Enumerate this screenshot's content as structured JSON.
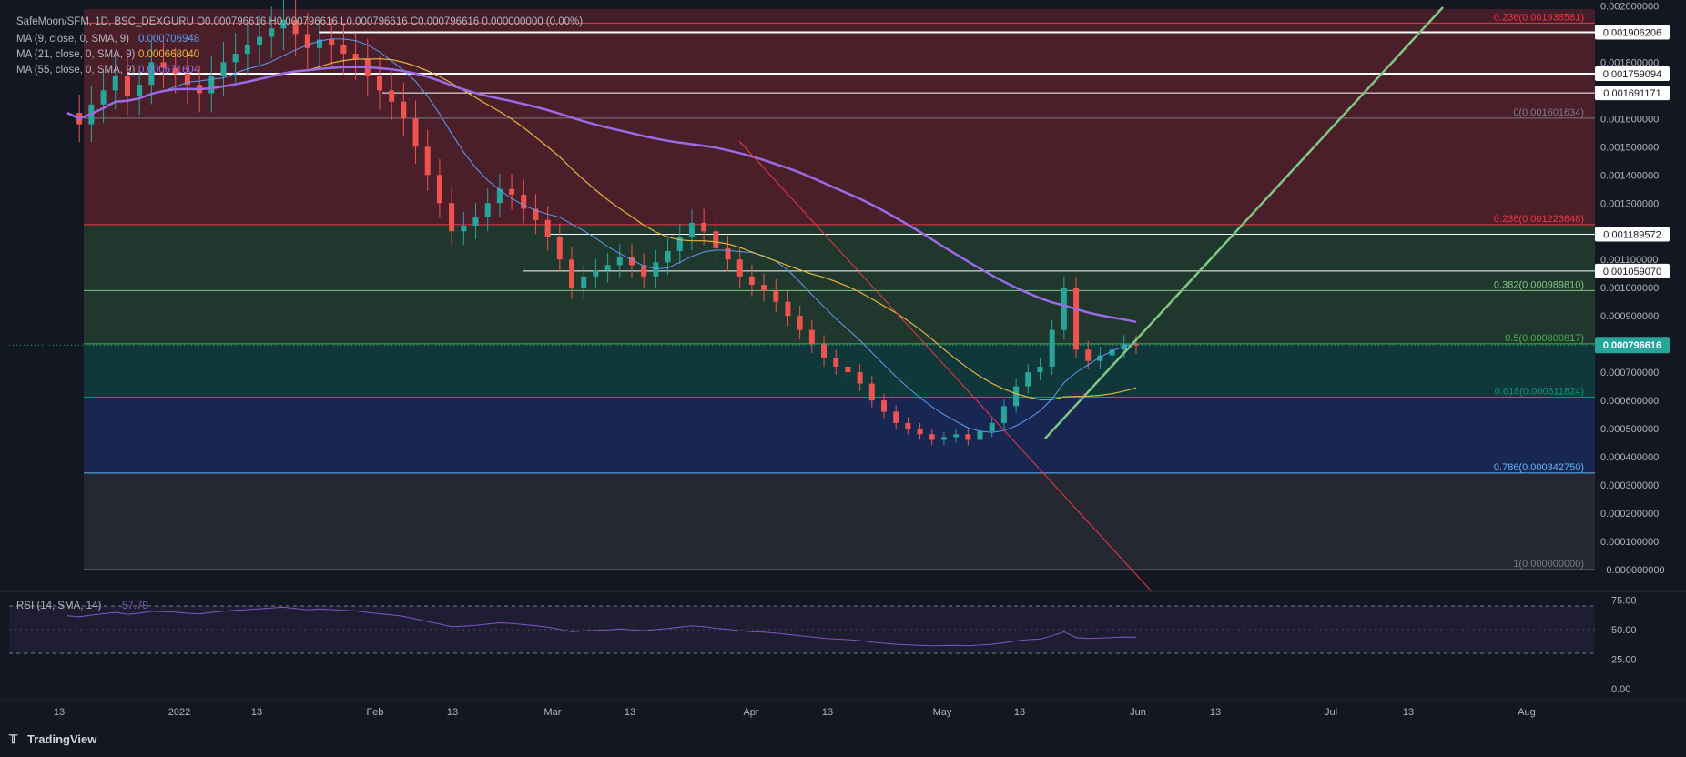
{
  "header": {
    "symbol_line": "SafeMoon/SFM, 1D, BSC_DEXGURU O0.000796616 H0.000796616 L0.000796616 C0.000796616 0.000000000 (0.00%)",
    "indicators": [
      {
        "text": "MA (9, close, 0, SMA, 9)",
        "value": "0.000706948",
        "color": "#5b9cf6"
      },
      {
        "text": "MA (21, close, 0, SMA, 9)",
        "value": "0.000668040",
        "color": "#e8b53c"
      },
      {
        "text": "MA (55, close, 0, SMA, 9)",
        "value": "0.000671604",
        "color": "#9c6ae5"
      }
    ]
  },
  "price_axis": {
    "ticks": [
      "0.002000000",
      "0.001800000",
      "0.001600000",
      "0.001500000",
      "0.001400000",
      "0.001300000",
      "0.001100000",
      "0.001000000",
      "0.000900000",
      "0.000700000",
      "0.000600000",
      "0.000500000",
      "0.000400000",
      "0.000300000",
      "0.000200000",
      "0.000100000",
      "−0.000000000"
    ],
    "tick_values": [
      0.002,
      0.0018,
      0.0016,
      0.0015,
      0.0014,
      0.0013,
      0.0011,
      0.001,
      0.0009,
      0.0007,
      0.0006,
      0.0005,
      0.0004,
      0.0003,
      0.0002,
      0.0001,
      0.0
    ],
    "boxed_labels": [
      {
        "text": "0.001906206",
        "value": 0.001906206
      },
      {
        "text": "0.001759094",
        "value": 0.001759094
      },
      {
        "text": "0.001691171",
        "value": 0.001691171
      },
      {
        "text": "0.001189572",
        "value": 0.001189572
      },
      {
        "text": "0.001059070",
        "value": 0.00105907
      }
    ],
    "current_price": {
      "text": "0.000796616",
      "value": 0.000796616,
      "color": "#26a69a"
    }
  },
  "fib_levels": [
    {
      "ratio": "0.236",
      "text": "0.236(0.001938581)",
      "value": 0.001938581,
      "color": "#f23645"
    },
    {
      "ratio": "0",
      "text": "0(0.001601634)",
      "value": 0.001601634,
      "color": "#787b86"
    },
    {
      "ratio": "0.236",
      "text": "0.236(0.001223648)",
      "value": 0.001223648,
      "color": "#f23645"
    },
    {
      "ratio": "0.382",
      "text": "0.382(0.000989810)",
      "value": 0.00098981,
      "color": "#81c784"
    },
    {
      "ratio": "0.5",
      "text": "0.5(0.000800817)",
      "value": 0.000800817,
      "color": "#4caf50"
    },
    {
      "ratio": "0.618",
      "text": "0.618(0.000611824)",
      "value": 0.000611824,
      "color": "#089981"
    },
    {
      "ratio": "0.786",
      "text": "0.786(0.000342750)",
      "value": 0.00034275,
      "color": "#64b5f6"
    },
    {
      "ratio": "1",
      "text": "1(0.000000000)",
      "value": 0.0,
      "color": "#787b86"
    }
  ],
  "time_axis": {
    "labels": [
      "13",
      "2022",
      "13",
      "Feb",
      "13",
      "Mar",
      "13",
      "Apr",
      "13",
      "May",
      "13",
      "Jun",
      "13",
      "Jul",
      "13",
      "Aug"
    ]
  },
  "rsi": {
    "label": "RSI (14, SMA, 14)",
    "value": "57.79",
    "ticks": [
      "75.00",
      "50.00",
      "25.00",
      "0.00"
    ],
    "tick_values": [
      75,
      50,
      25,
      0
    ]
  },
  "footer": {
    "brand": "TradingView"
  },
  "colors": {
    "up": "#26a69a",
    "down": "#ef5350",
    "trendline_up": "#81c784",
    "trendline_down": "#f23645",
    "rsi_line": "#7e57c2"
  },
  "chart_data": {
    "type": "candlestick",
    "title": "SafeMoon/SFM, 1D, BSC_DEXGURU",
    "ylim": [
      -0.0001,
      0.0021
    ],
    "series": [
      {
        "name": "price",
        "values": [
          0.00162,
          0.00158,
          0.00165,
          0.0017,
          0.00175,
          0.00168,
          0.00172,
          0.0018,
          0.00178,
          0.00176,
          0.00172,
          0.00169,
          0.00175,
          0.0018,
          0.00183,
          0.00186,
          0.00189,
          0.00192,
          0.00195,
          0.0019,
          0.00185,
          0.00188,
          0.00186,
          0.00183,
          0.00181,
          0.00175,
          0.0017,
          0.00166,
          0.0016,
          0.0015,
          0.0014,
          0.0013,
          0.0012,
          0.00122,
          0.00125,
          0.0013,
          0.00135,
          0.00133,
          0.00128,
          0.00124,
          0.00118,
          0.0011,
          0.001,
          0.00104,
          0.00106,
          0.00108,
          0.00111,
          0.00108,
          0.00104,
          0.00109,
          0.00113,
          0.00118,
          0.00123,
          0.0012,
          0.00114,
          0.0011,
          0.00104,
          0.00101,
          0.00099,
          0.00095,
          0.0009,
          0.00085,
          0.0008,
          0.00075,
          0.00072,
          0.0007,
          0.00066,
          0.0006,
          0.00056,
          0.00052,
          0.0005,
          0.00048,
          0.00046,
          0.00047,
          0.00048,
          0.00046,
          0.00049,
          0.00052,
          0.00058,
          0.00065,
          0.0007,
          0.00072,
          0.00085,
          0.001,
          0.00078,
          0.00074,
          0.00076,
          0.00078,
          0.0008,
          0.000797
        ]
      }
    ]
  }
}
